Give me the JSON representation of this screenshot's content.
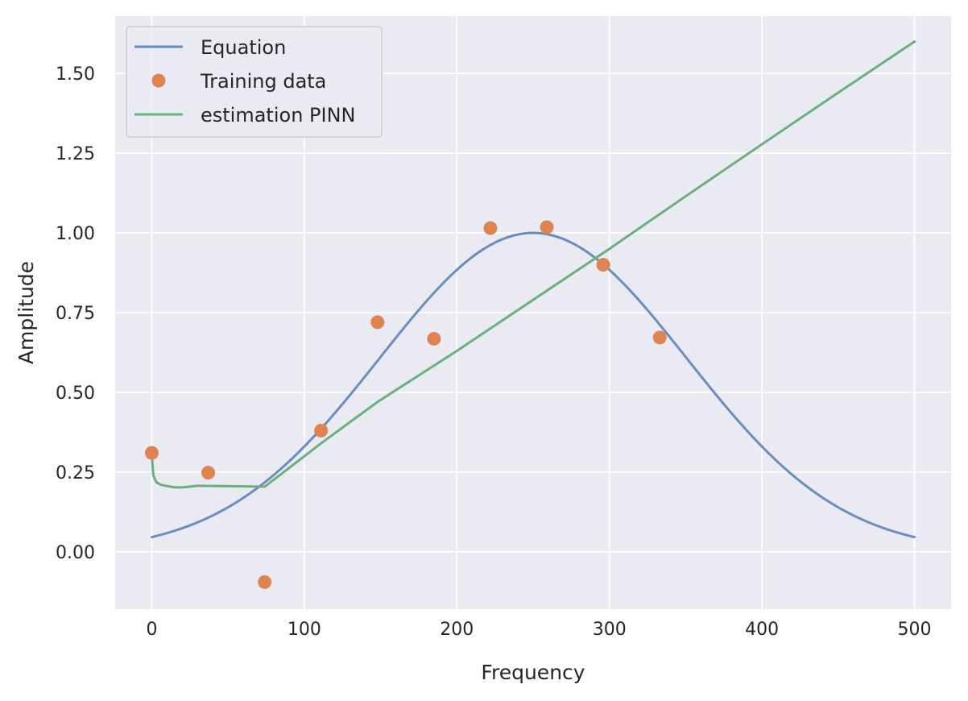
{
  "chart_data": {
    "type": "line",
    "title": "",
    "xlabel": "Frequency",
    "ylabel": "Amplitude",
    "xlim": [
      -24,
      524
    ],
    "ylim": [
      -0.18,
      1.68
    ],
    "xticks": [
      0,
      100,
      200,
      300,
      400,
      500
    ],
    "xtick_labels": [
      "0",
      "100",
      "200",
      "300",
      "400",
      "500"
    ],
    "yticks": [
      0.0,
      0.25,
      0.5,
      0.75,
      1.0,
      1.25,
      1.5
    ],
    "ytick_labels": [
      "0.00",
      "0.25",
      "0.50",
      "0.75",
      "1.00",
      "1.25",
      "1.50"
    ],
    "grid": true,
    "legend_position": "upper-left",
    "series": [
      {
        "name": "Equation",
        "kind": "line",
        "color": "#6b8cbf",
        "x": [
          0,
          25,
          50,
          75,
          100,
          125,
          150,
          175,
          200,
          225,
          250,
          275,
          300,
          325,
          350,
          375,
          400,
          425,
          450,
          475,
          500
        ],
        "y": [
          0.046,
          0.069,
          0.132,
          0.21,
          0.31,
          0.44,
          0.6,
          0.76,
          0.89,
          0.975,
          1.0,
          0.975,
          0.89,
          0.76,
          0.6,
          0.44,
          0.31,
          0.21,
          0.132,
          0.069,
          0.046
        ]
      },
      {
        "name": "Training data",
        "kind": "scatter",
        "color": "#dd8452",
        "x": [
          0,
          37,
          74,
          111,
          148,
          185,
          222,
          259,
          296,
          333
        ],
        "y": [
          0.31,
          0.248,
          -0.095,
          0.38,
          0.72,
          0.668,
          1.015,
          1.018,
          0.9,
          0.672
        ]
      },
      {
        "name": "estimation PINN",
        "kind": "line",
        "color": "#6aaf7e",
        "x": [
          0,
          1,
          3,
          6,
          10,
          15,
          20,
          30,
          45,
          60,
          74,
          111,
          148,
          200,
          250,
          300,
          350,
          400,
          450,
          500
        ],
        "y": [
          0.31,
          0.24,
          0.218,
          0.21,
          0.206,
          0.202,
          0.202,
          0.207,
          0.206,
          0.205,
          0.204,
          0.34,
          0.47,
          0.63,
          0.79,
          0.95,
          1.115,
          1.278,
          1.44,
          1.6
        ]
      }
    ]
  }
}
